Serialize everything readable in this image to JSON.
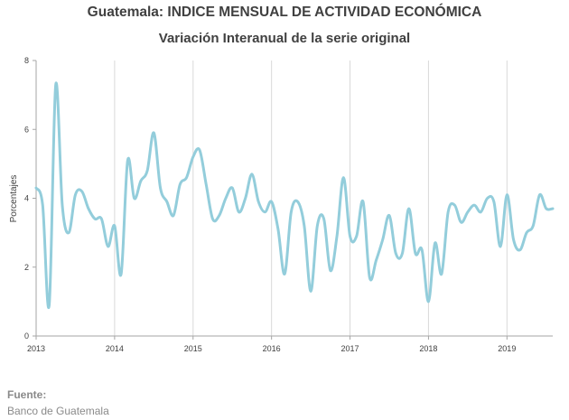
{
  "title": "Guatemala: INDICE MENSUAL DE ACTIVIDAD ECONÓMICA",
  "subtitle": "Variación Interanual de la serie original",
  "source": {
    "label": "Fuente:",
    "value": "Banco de Guatemala"
  },
  "colors": {
    "line": "#93cddb",
    "grid": "#d9d9d9",
    "axis": "#a6a6a6"
  },
  "chart_data": {
    "type": "line",
    "title": "Guatemala: INDICE MENSUAL DE ACTIVIDAD ECONÓMICA",
    "subtitle": "Variación Interanual de la serie original",
    "xlabel": "",
    "ylabel": "Porcentajes",
    "ylim": [
      0,
      8
    ],
    "yticks": [
      0,
      2,
      4,
      6,
      8
    ],
    "xlim": [
      "2013-01",
      "2019-08"
    ],
    "xticks": [
      "2013",
      "2014",
      "2015",
      "2016",
      "2017",
      "2018",
      "2019"
    ],
    "grid": "vertical",
    "series": [
      {
        "name": "",
        "x": [
          "2013-01",
          "2013-02",
          "2013-03",
          "2013-04",
          "2013-05",
          "2013-06",
          "2013-07",
          "2013-08",
          "2013-09",
          "2013-10",
          "2013-11",
          "2013-12",
          "2014-01",
          "2014-02",
          "2014-03",
          "2014-04",
          "2014-05",
          "2014-06",
          "2014-07",
          "2014-08",
          "2014-09",
          "2014-10",
          "2014-11",
          "2014-12",
          "2015-01",
          "2015-02",
          "2015-03",
          "2015-04",
          "2015-05",
          "2015-06",
          "2015-07",
          "2015-08",
          "2015-09",
          "2015-10",
          "2015-11",
          "2015-12",
          "2016-01",
          "2016-02",
          "2016-03",
          "2016-04",
          "2016-05",
          "2016-06",
          "2016-07",
          "2016-08",
          "2016-09",
          "2016-10",
          "2016-11",
          "2016-12",
          "2017-01",
          "2017-02",
          "2017-03",
          "2017-04",
          "2017-05",
          "2017-06",
          "2017-07",
          "2017-08",
          "2017-09",
          "2017-10",
          "2017-11",
          "2017-12",
          "2018-01",
          "2018-02",
          "2018-03",
          "2018-04",
          "2018-05",
          "2018-06",
          "2018-07",
          "2018-08",
          "2018-09",
          "2018-10",
          "2018-11",
          "2018-12",
          "2019-01",
          "2019-02",
          "2019-03",
          "2019-04",
          "2019-05",
          "2019-06",
          "2019-07",
          "2019-08"
        ],
        "values": [
          4.3,
          3.8,
          0.9,
          7.3,
          3.8,
          3.0,
          4.1,
          4.2,
          3.7,
          3.4,
          3.4,
          2.6,
          3.2,
          1.8,
          5.1,
          4.0,
          4.5,
          4.8,
          5.9,
          4.3,
          3.9,
          3.5,
          4.4,
          4.6,
          5.2,
          5.4,
          4.4,
          3.4,
          3.5,
          4.0,
          4.3,
          3.6,
          4.0,
          4.7,
          3.9,
          3.6,
          3.9,
          3.1,
          1.8,
          3.6,
          3.9,
          3.2,
          1.3,
          3.2,
          3.4,
          1.9,
          2.9,
          4.6,
          2.9,
          2.9,
          3.9,
          1.7,
          2.2,
          2.8,
          3.5,
          2.4,
          2.4,
          3.7,
          2.4,
          2.5,
          1.0,
          2.7,
          1.8,
          3.6,
          3.8,
          3.3,
          3.6,
          3.8,
          3.6,
          4.0,
          3.9,
          2.6,
          4.1,
          2.8,
          2.5,
          3.0,
          3.2,
          4.1,
          3.7,
          3.7
        ]
      }
    ]
  }
}
